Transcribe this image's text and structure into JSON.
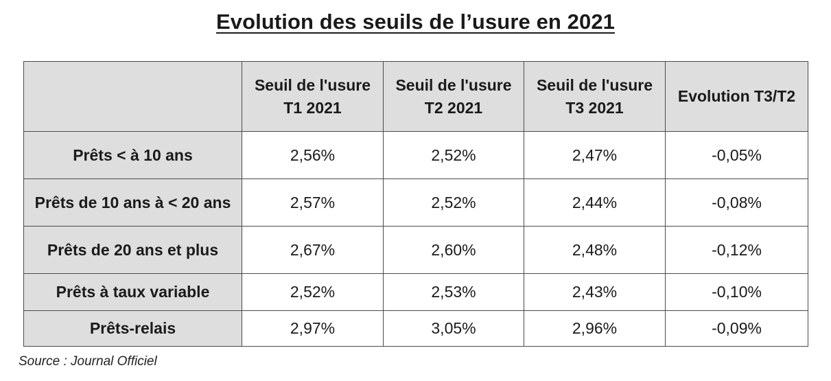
{
  "title": "Evolution des seuils de l’usure en 2021",
  "table": {
    "headers": [
      "",
      "Seuil de l'usure T1 2021",
      "Seuil de l'usure T2 2021",
      "Seuil de l'usure T3 2021",
      "Evolution T3/T2"
    ],
    "header_lines": [
      [],
      [
        "Seuil de l'usure",
        "T1 2021"
      ],
      [
        "Seuil de l'usure",
        "T2 2021"
      ],
      [
        "Seuil de l'usure",
        "T3 2021"
      ],
      [
        "Evolution T3/T2"
      ]
    ],
    "rows": [
      {
        "label": "Prêts < à 10 ans",
        "t1": "2,56%",
        "t2": "2,52%",
        "t3": "2,47%",
        "evolution": "-0,05%"
      },
      {
        "label": "Prêts de 10 ans à < 20 ans",
        "t1": "2,57%",
        "t2": "2,52%",
        "t3": "2,44%",
        "evolution": "-0,08%"
      },
      {
        "label": "Prêts de 20 ans et plus",
        "t1": "2,67%",
        "t2": "2,60%",
        "t3": "2,48%",
        "evolution": "-0,12%"
      },
      {
        "label": "Prêts à taux variable",
        "t1": "2,52%",
        "t2": "2,53%",
        "t3": "2,43%",
        "evolution": "-0,10%"
      },
      {
        "label": "Prêts-relais",
        "t1": "2,97%",
        "t2": "3,05%",
        "t3": "2,96%",
        "evolution": "-0,09%"
      }
    ]
  },
  "source": "Source : Journal Officiel",
  "colors": {
    "header_fill": "#dedede",
    "cell_fill": "#ffffff",
    "border": "#4a4a4a"
  }
}
